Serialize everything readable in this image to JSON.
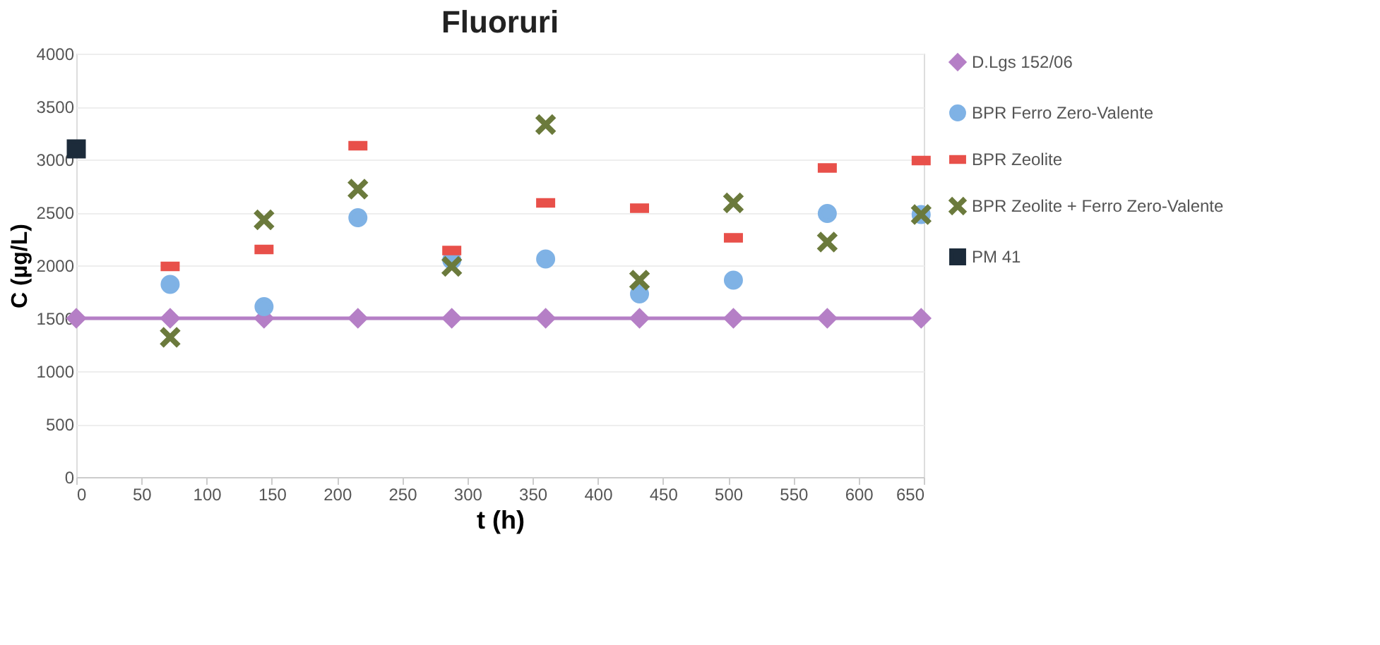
{
  "chart_data": {
    "type": "scatter",
    "title": "Fluoruri",
    "xlabel": "t (h)",
    "ylabel": "C (µg/L)",
    "xlim": [
      0,
      650
    ],
    "xticks": [
      0,
      50,
      100,
      150,
      200,
      250,
      300,
      350,
      400,
      450,
      500,
      550,
      600,
      650
    ],
    "ylim": [
      0,
      4000
    ],
    "yticks": [
      0,
      500,
      1000,
      1500,
      2000,
      2500,
      3000,
      3500,
      4000
    ],
    "grid": "y",
    "legend": "top right",
    "series": [
      {
        "name": "D.Lgs 152/06",
        "type": "line",
        "marker": "diamond",
        "color": "#b57fc6",
        "x": [
          0,
          72,
          144,
          216,
          288,
          360,
          432,
          504,
          576,
          648
        ],
        "values": [
          1500,
          1500,
          1500,
          1500,
          1500,
          1500,
          1500,
          1500,
          1500,
          1500
        ]
      },
      {
        "name": "BPR Ferro Zero-Valente",
        "marker": "circle",
        "color": "#7fb2e5",
        "x": [
          72,
          144,
          216,
          288,
          360,
          432,
          504,
          576,
          648
        ],
        "values": [
          1820,
          1610,
          2450,
          2050,
          2060,
          1730,
          1860,
          2490,
          2480
        ]
      },
      {
        "name": "BPR Zeolite",
        "color": "#e8504a",
        "x": [
          72,
          144,
          216,
          288,
          360,
          432,
          504,
          576,
          648
        ],
        "values": [
          1990,
          2150,
          3130,
          2140,
          2590,
          2540,
          2260,
          2920,
          2990
        ]
      },
      {
        "name": "BPR Zeolite + Ferro Zero-Valente",
        "marker": "cross",
        "color": "#6b7a3c",
        "x": [
          72,
          144,
          216,
          288,
          360,
          432,
          504,
          576,
          648
        ],
        "values": [
          1320,
          2430,
          2720,
          1990,
          3330,
          1860,
          2590,
          2220,
          2480
        ]
      },
      {
        "name": "PM 41",
        "marker": "square",
        "color": "#1c2b3a",
        "x": [
          0
        ],
        "values": [
          3100
        ]
      }
    ]
  }
}
